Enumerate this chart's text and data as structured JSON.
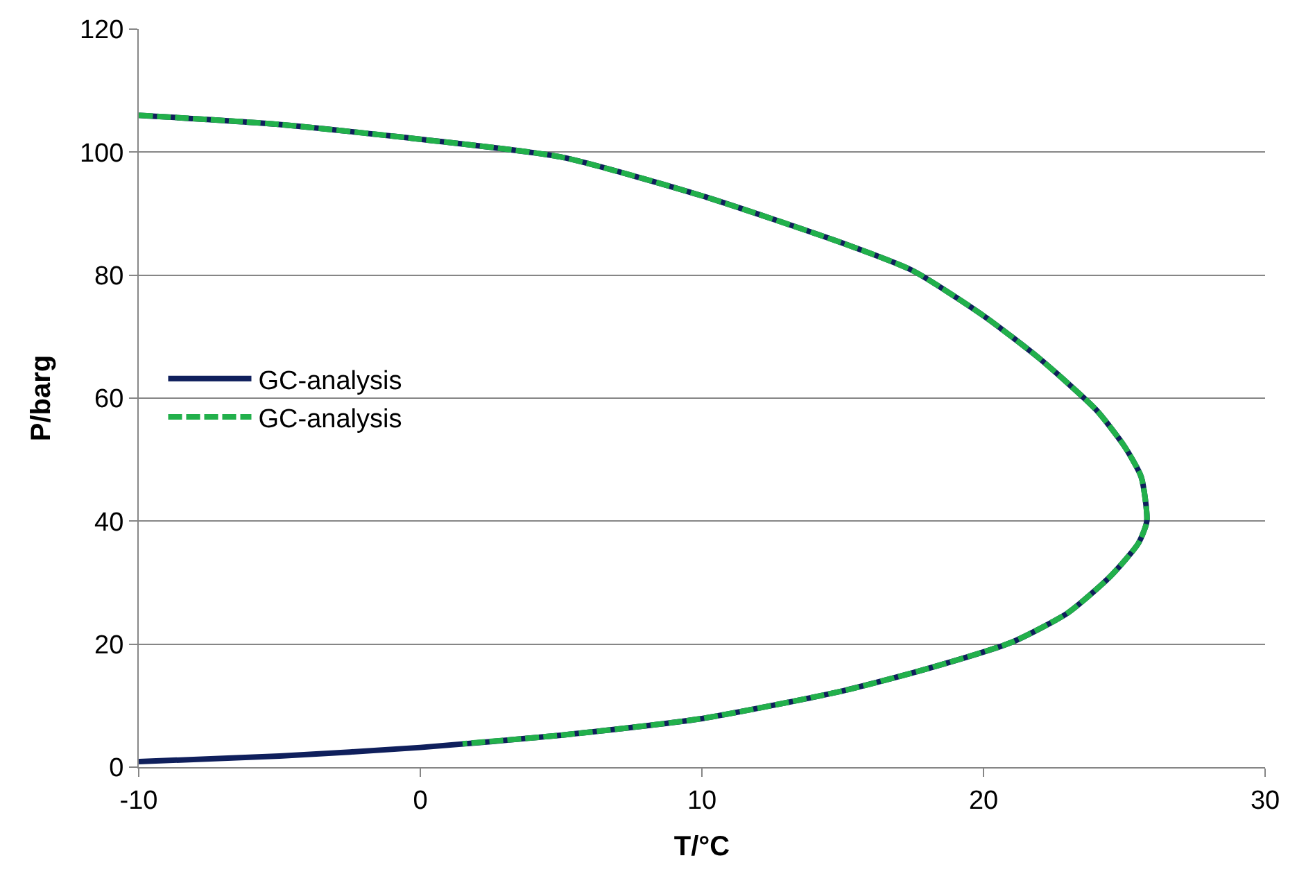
{
  "chart_data": {
    "type": "line",
    "xlabel": "T/°C",
    "ylabel": "P/barg",
    "xlim": [
      -10,
      30
    ],
    "xticks": [
      -10,
      0,
      10,
      20,
      30
    ],
    "ylim": [
      0,
      120
    ],
    "yticks": [
      0,
      20,
      40,
      60,
      80,
      100,
      120
    ],
    "grid": "y",
    "legend": "left",
    "marker": "none",
    "series": [
      {
        "name": "GC-analysis",
        "color": "#0f1f5c",
        "line_style": "solid",
        "x": [
          -10,
          -5,
          0,
          5,
          10,
          15,
          17.5,
          20,
          22,
          24,
          25,
          25.6,
          25.8,
          25.5,
          24.5,
          23,
          21,
          18,
          15,
          10,
          5,
          0,
          -5,
          -10
        ],
        "values": [
          106,
          104.5,
          102.1,
          99.2,
          92.9,
          85.2,
          80.7,
          73.4,
          66.4,
          58.1,
          52.2,
          47.2,
          40,
          36.4,
          31,
          25.1,
          20.3,
          16,
          12.4,
          7.9,
          5.2,
          3.2,
          1.8,
          0.9
        ]
      },
      {
        "name": "GC-analysis",
        "color": "#22b04b",
        "line_style": "dashed",
        "x": [
          -10,
          -5,
          0,
          5,
          10,
          15,
          17.5,
          20,
          22,
          24,
          25,
          25.6,
          25.8,
          25.5,
          24.5,
          23,
          21,
          18,
          15,
          10,
          5,
          1.5
        ],
        "values": [
          106,
          104.5,
          102.1,
          99.2,
          92.9,
          85.2,
          80.7,
          73.4,
          66.4,
          58.1,
          52.2,
          47.2,
          40,
          36.4,
          31,
          25.1,
          20.3,
          16,
          12.4,
          7.9,
          5.2,
          3.8
        ]
      }
    ]
  }
}
